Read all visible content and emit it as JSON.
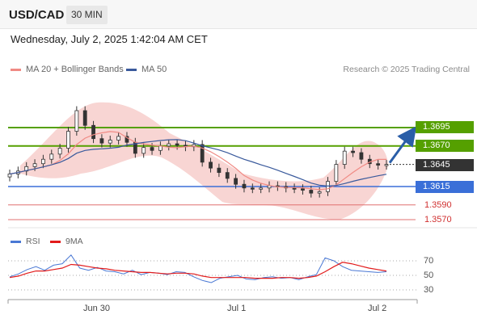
{
  "header": {
    "symbol": "USD/CAD",
    "interval": "30 MIN"
  },
  "timestamp": "Wednesday, July 2, 2025 1:42:04 AM CET",
  "legend": {
    "ma20_label": "MA 20 + Bollinger Bands",
    "ma20_color": "#f08a84",
    "ma50_label": "MA 50",
    "ma50_color": "#3a5a9c",
    "copyright": "Research © 2025 Trading Central"
  },
  "rsi_legend": {
    "rsi_label": "RSI",
    "rsi_color": "#4a78d4",
    "ma_label": "9MA",
    "ma_color": "#e21b1b"
  },
  "colors": {
    "resistance": "#55a000",
    "pivot": "#3a6fd8",
    "support": "#e07070",
    "last_price": "#333333",
    "arrow": "#2a5ea8",
    "candle": "#333333"
  },
  "price_levels": {
    "target_2": "1.3695",
    "target_1": "1.3670",
    "last": "1.3645",
    "pivot": "1.3615",
    "support_1": "1.3590",
    "support_2": "1.3570"
  },
  "rsi_axis": [
    "70",
    "50",
    "30"
  ],
  "x_axis": [
    "Jun 30",
    "Jul 1",
    "Jul 2"
  ],
  "chart_data": [
    {
      "type": "candlestick",
      "title": "USD/CAD",
      "interval": "30 MIN",
      "series": [
        {
          "name": "MA 20",
          "color": "#f08a84"
        },
        {
          "name": "MA 50",
          "color": "#3a5a9c"
        }
      ],
      "horizontal_levels": [
        1.3695,
        1.367,
        1.3645,
        1.3615,
        1.359,
        1.357
      ],
      "approx_close": [
        1.3632,
        1.3636,
        1.3642,
        1.3646,
        1.3652,
        1.3659,
        1.3667,
        1.369,
        1.3718,
        1.3698,
        1.368,
        1.3674,
        1.3678,
        1.3683,
        1.3675,
        1.366,
        1.3668,
        1.3664,
        1.367,
        1.3673,
        1.3671,
        1.3669,
        1.3672,
        1.3648,
        1.364,
        1.3634,
        1.3626,
        1.3618,
        1.3613,
        1.3612,
        1.3613,
        1.3616,
        1.3615,
        1.3613,
        1.3612,
        1.361,
        1.3606,
        1.3608,
        1.3622,
        1.3645,
        1.3663,
        1.3661,
        1.3652,
        1.3646,
        1.3644,
        1.3645
      ],
      "projection": {
        "from": 1.3645,
        "to": 1.3695
      },
      "x_labels": [
        "Jun 30",
        "Jul 1",
        "Jul 2"
      ]
    },
    {
      "type": "line",
      "title": "RSI",
      "series": [
        {
          "name": "RSI",
          "color": "#4a78d4"
        },
        {
          "name": "9MA",
          "color": "#e21b1b"
        }
      ],
      "yticks": [
        70,
        50,
        30
      ],
      "approx_rsi": [
        48,
        52,
        58,
        62,
        57,
        64,
        66,
        78,
        60,
        57,
        61,
        56,
        55,
        52,
        57,
        51,
        54,
        53,
        51,
        55,
        54,
        48,
        43,
        40,
        46,
        48,
        50,
        45,
        44,
        47,
        48,
        46,
        47,
        44,
        48,
        51,
        74,
        70,
        62,
        57,
        56,
        55,
        54,
        55
      ],
      "approx_ma": [
        47,
        49,
        53,
        56,
        56,
        58,
        60,
        65,
        64,
        62,
        60,
        59,
        57,
        56,
        55,
        54,
        54,
        53,
        52,
        53,
        53,
        52,
        49,
        47,
        47,
        47,
        47,
        47,
        46,
        46,
        46,
        47,
        47,
        46,
        47,
        49,
        55,
        62,
        68,
        66,
        63,
        60,
        58,
        56
      ]
    }
  ]
}
